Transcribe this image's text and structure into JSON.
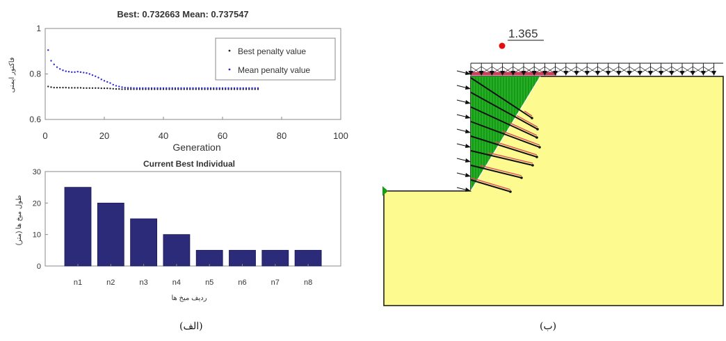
{
  "chart_data": [
    {
      "type": "scatter",
      "title": "Best: 0.732663 Mean: 0.737547",
      "xlabel": "Generation",
      "ylabel": "فاکتور ایمنی",
      "xlim": [
        0,
        100
      ],
      "ylim": [
        0.6,
        1
      ],
      "xticks": [
        "0",
        "20",
        "40",
        "60",
        "80",
        "100"
      ],
      "yticks": [
        "0.6",
        "0.8",
        "1"
      ],
      "legend_position": "top-right",
      "grid": false,
      "series": [
        {
          "name": "Best penalty value",
          "color": "#222222",
          "x": [
            1,
            2,
            3,
            4,
            5,
            6,
            7,
            8,
            9,
            10,
            11,
            12,
            13,
            14,
            15,
            16,
            17,
            18,
            19,
            20,
            21,
            22,
            23,
            24,
            25,
            26,
            27,
            28,
            29,
            30,
            31,
            32,
            33,
            34,
            35,
            36,
            37,
            38,
            39,
            40,
            41,
            42,
            43,
            44,
            45,
            46,
            47,
            48,
            49,
            50,
            51,
            52,
            53,
            54,
            55,
            56,
            57,
            58,
            59,
            60,
            61,
            62,
            63,
            64,
            65,
            66,
            67,
            68,
            69,
            70,
            71,
            72
          ],
          "y": [
            0.745,
            0.742,
            0.74,
            0.74,
            0.74,
            0.74,
            0.74,
            0.739,
            0.739,
            0.739,
            0.739,
            0.739,
            0.738,
            0.738,
            0.738,
            0.738,
            0.738,
            0.738,
            0.737,
            0.737,
            0.737,
            0.736,
            0.735,
            0.734,
            0.734,
            0.733,
            0.733,
            0.733,
            0.733,
            0.733,
            0.733,
            0.733,
            0.733,
            0.733,
            0.733,
            0.733,
            0.733,
            0.733,
            0.733,
            0.733,
            0.733,
            0.733,
            0.733,
            0.733,
            0.733,
            0.733,
            0.733,
            0.733,
            0.733,
            0.733,
            0.733,
            0.733,
            0.733,
            0.733,
            0.733,
            0.733,
            0.733,
            0.733,
            0.733,
            0.733,
            0.733,
            0.733,
            0.733,
            0.733,
            0.733,
            0.733,
            0.733,
            0.733,
            0.733,
            0.733,
            0.733,
            0.733
          ]
        },
        {
          "name": "Mean penalty value",
          "color": "#2a2ad6",
          "x": [
            1,
            2,
            3,
            4,
            5,
            6,
            7,
            8,
            9,
            10,
            11,
            12,
            13,
            14,
            15,
            16,
            17,
            18,
            19,
            20,
            21,
            22,
            23,
            24,
            25,
            26,
            27,
            28,
            29,
            30,
            31,
            32,
            33,
            34,
            35,
            36,
            37,
            38,
            39,
            40,
            41,
            42,
            43,
            44,
            45,
            46,
            47,
            48,
            49,
            50,
            51,
            52,
            53,
            54,
            55,
            56,
            57,
            58,
            59,
            60,
            61,
            62,
            63,
            64,
            65,
            66,
            67,
            68,
            69,
            70,
            71,
            72
          ],
          "y": [
            0.905,
            0.858,
            0.842,
            0.83,
            0.822,
            0.816,
            0.812,
            0.81,
            0.808,
            0.808,
            0.81,
            0.808,
            0.806,
            0.804,
            0.8,
            0.795,
            0.79,
            0.784,
            0.776,
            0.77,
            0.765,
            0.76,
            0.753,
            0.748,
            0.745,
            0.742,
            0.74,
            0.739,
            0.739,
            0.738,
            0.738,
            0.738,
            0.738,
            0.738,
            0.738,
            0.738,
            0.738,
            0.738,
            0.738,
            0.738,
            0.738,
            0.738,
            0.738,
            0.738,
            0.738,
            0.738,
            0.738,
            0.738,
            0.738,
            0.738,
            0.738,
            0.738,
            0.738,
            0.738,
            0.738,
            0.738,
            0.738,
            0.738,
            0.738,
            0.738,
            0.738,
            0.738,
            0.738,
            0.738,
            0.738,
            0.738,
            0.738,
            0.738,
            0.738,
            0.738,
            0.738,
            0.738
          ]
        }
      ]
    },
    {
      "type": "bar",
      "title": "Current Best Individual",
      "xlabel": "ردیف میخ ها",
      "ylabel": "طول میخ ها (متر)",
      "categories": [
        "n1",
        "n2",
        "n3",
        "n4",
        "n5",
        "n6",
        "n7",
        "n8"
      ],
      "values": [
        25,
        20,
        15,
        10,
        5,
        5,
        5,
        5
      ],
      "ylim": [
        0,
        30
      ],
      "yticks": [
        "0",
        "10",
        "20",
        "30"
      ],
      "color": "#2b2b7a"
    }
  ],
  "slope_model": {
    "safety_factor_label": "1.365",
    "colors": {
      "soil": "#fdfb8f",
      "failure_wedge": "#22b022",
      "nail": "#111111",
      "nail_outline": "#e0485c",
      "surcharge": "#c8405a",
      "critical_center": "#e01010"
    },
    "nail_count": 8
  },
  "captions": {
    "left": "(الف)",
    "right": "(ب)"
  }
}
